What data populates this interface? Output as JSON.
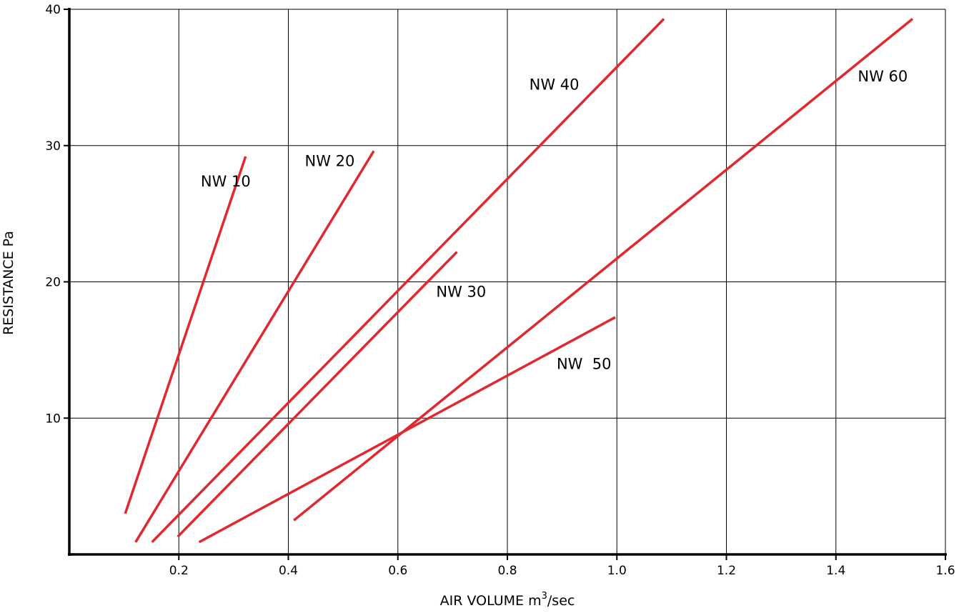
{
  "chart_data": {
    "type": "line",
    "title": "",
    "xlabel": "AIR VOLUME m",
    "xlabel_sup": "3",
    "xlabel_suffix": "/sec",
    "ylabel": "RESISTANCE Pa",
    "xlim": [
      0,
      1.6
    ],
    "ylim": [
      0,
      40
    ],
    "x_ticks": [
      "0.2",
      "0.4",
      "0.6",
      "0.8",
      "1.0",
      "1.2",
      "1.4",
      "1.6"
    ],
    "x_tick_values": [
      0.2,
      0.4,
      0.6,
      0.8,
      1.0,
      1.2,
      1.4,
      1.6
    ],
    "y_ticks": [
      "10",
      "20",
      "30",
      "40"
    ],
    "y_tick_values": [
      10,
      20,
      30,
      40
    ],
    "grid": true,
    "line_color": "#e0282e",
    "series": [
      {
        "name": "NW 10",
        "x": [
          0.102,
          0.322
        ],
        "y": [
          3.0,
          29.2
        ],
        "label_at": [
          0.24,
          27.0
        ]
      },
      {
        "name": "NW 20",
        "x": [
          0.121,
          0.556
        ],
        "y": [
          0.9,
          29.6
        ],
        "label_at": [
          0.43,
          28.5
        ]
      },
      {
        "name": "NW 30",
        "x": [
          0.198,
          0.708
        ],
        "y": [
          1.3,
          22.2
        ],
        "label_at": [
          0.67,
          18.9
        ]
      },
      {
        "name": "NW 40",
        "x": [
          0.151,
          1.086
        ],
        "y": [
          0.9,
          39.3
        ],
        "label_at": [
          0.84,
          34.1
        ]
      },
      {
        "name": "NW  50",
        "x": [
          0.237,
          0.997
        ],
        "y": [
          0.9,
          17.4
        ],
        "label_at": [
          0.89,
          13.6
        ]
      },
      {
        "name": "NW 60",
        "x": [
          0.41,
          1.54
        ],
        "y": [
          2.5,
          39.3
        ],
        "label_at": [
          1.44,
          34.7
        ]
      }
    ]
  }
}
